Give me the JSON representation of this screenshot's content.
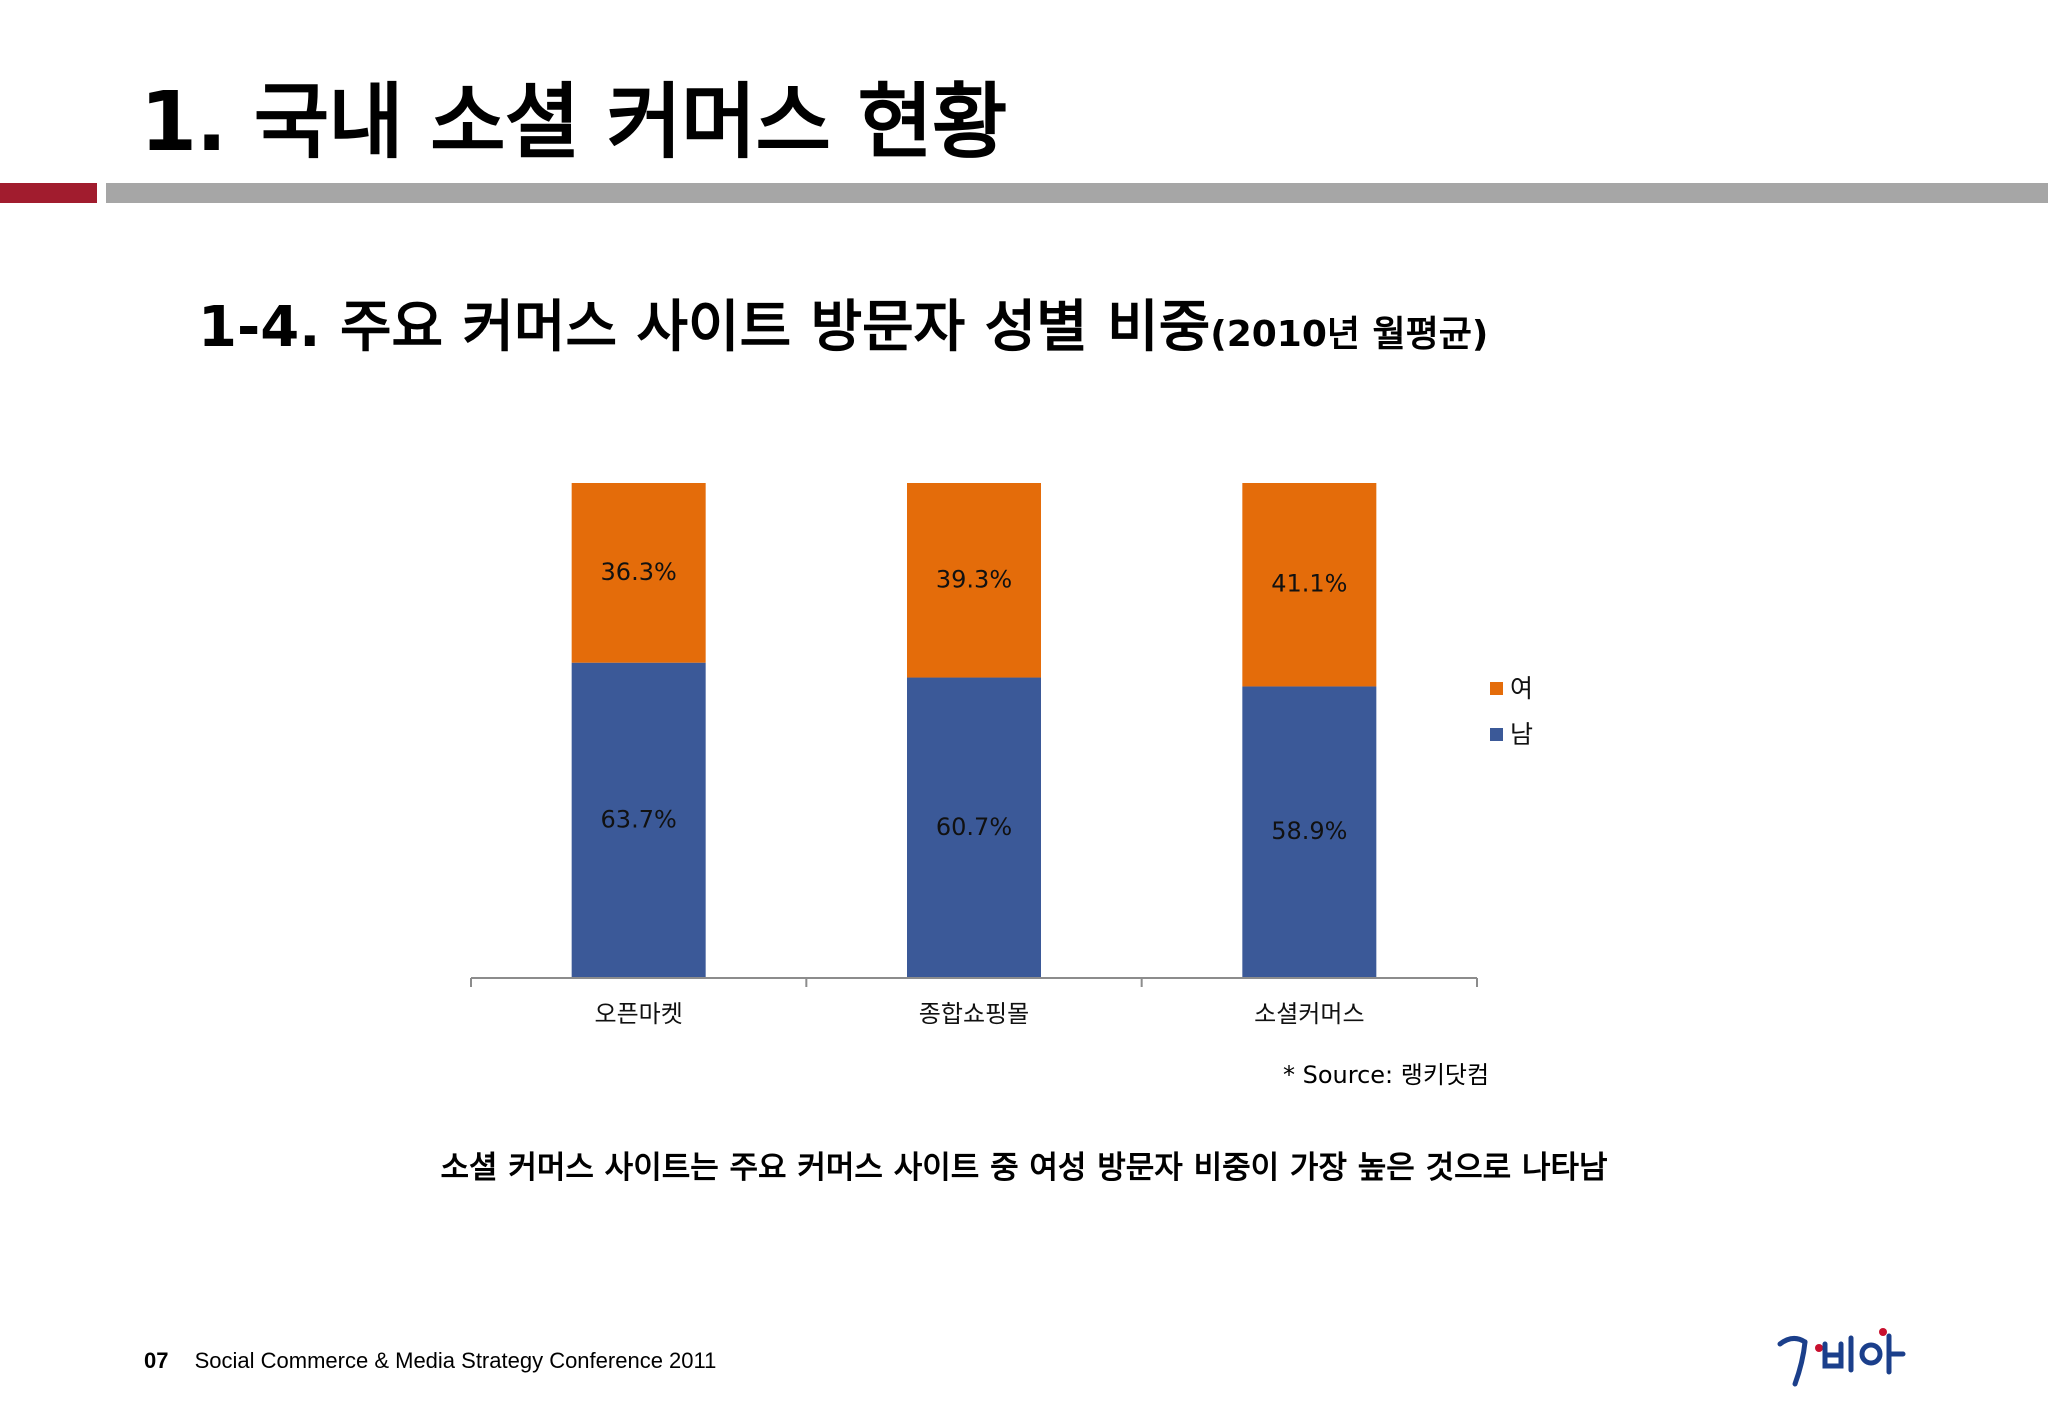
{
  "slide": {
    "title": "1. 국내 소셜 커머스 현황",
    "subtitle_main": "1-4. 주요 커머스 사이트 방문자 성별 비중",
    "subtitle_note": "(2010년 월평균)",
    "source": "* Source: 랭키닷컴",
    "summary": "소셜 커머스 사이트는 주요 커머스 사이트 중 여성 방문자 비중이 가장 높은 것으로 나타남",
    "footer_page": "07",
    "footer_text": "Social Commerce & Media Strategy Conference 2011",
    "logo_text": "가비아",
    "colors": {
      "accent_red": "#a11c2e",
      "rule_gray": "#a6a6a6"
    }
  },
  "chart_data": {
    "type": "bar",
    "stacked": true,
    "categories": [
      "오픈마켓",
      "종합쇼핑몰",
      "소셜커머스"
    ],
    "series": [
      {
        "name": "남",
        "values": [
          63.7,
          60.7,
          58.9
        ],
        "labels": [
          "63.7%",
          "60.7%",
          "58.9%"
        ],
        "color": "#3b5998"
      },
      {
        "name": "여",
        "values": [
          36.3,
          39.3,
          41.1
        ],
        "labels": [
          "36.3%",
          "39.3%",
          "41.1%"
        ],
        "color": "#e46c0a"
      }
    ],
    "legend_order": [
      "여",
      "남"
    ],
    "legend_position": "right",
    "ylim": [
      0,
      100
    ],
    "grid": false
  }
}
